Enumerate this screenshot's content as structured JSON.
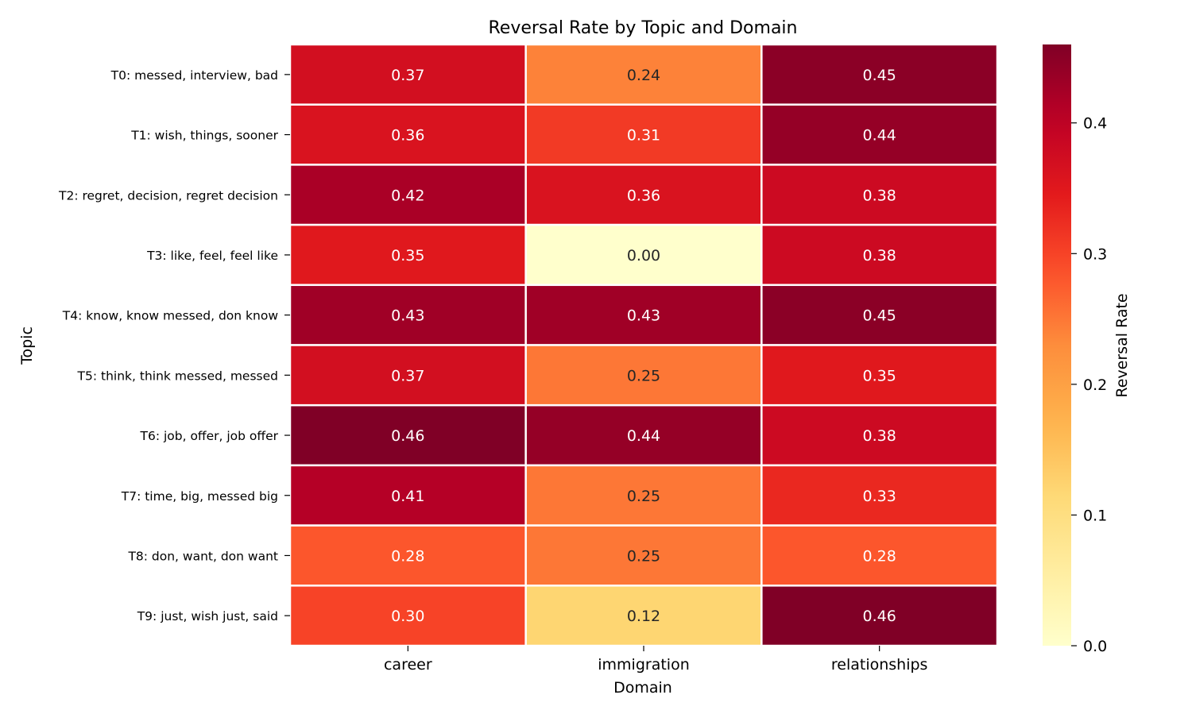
{
  "chart_data": {
    "type": "heatmap",
    "title": "Reversal Rate by Topic and Domain",
    "xlabel": "Domain",
    "ylabel": "Topic",
    "x_categories": [
      "career",
      "immigration",
      "relationships"
    ],
    "y_categories": [
      "T0: messed, interview, bad",
      "T1: wish, things, sooner",
      "T2: regret, decision, regret decision",
      "T3: like, feel, feel like",
      "T4: know, know messed, don know",
      "T5: think, think messed, messed",
      "T6: job, offer, job offer",
      "T7: time, big, messed big",
      "T8: don, want, don want",
      "T9: just, wish just, said"
    ],
    "values": [
      [
        0.37,
        0.24,
        0.45
      ],
      [
        0.36,
        0.31,
        0.44
      ],
      [
        0.42,
        0.36,
        0.38
      ],
      [
        0.35,
        0.0,
        0.38
      ],
      [
        0.43,
        0.43,
        0.45
      ],
      [
        0.37,
        0.25,
        0.35
      ],
      [
        0.46,
        0.44,
        0.38
      ],
      [
        0.41,
        0.25,
        0.33
      ],
      [
        0.28,
        0.25,
        0.28
      ],
      [
        0.3,
        0.12,
        0.46
      ]
    ],
    "value_labels": [
      [
        "0.37",
        "0.24",
        "0.45"
      ],
      [
        "0.36",
        "0.31",
        "0.44"
      ],
      [
        "0.42",
        "0.36",
        "0.38"
      ],
      [
        "0.35",
        "0.00",
        "0.38"
      ],
      [
        "0.43",
        "0.43",
        "0.45"
      ],
      [
        "0.37",
        "0.25",
        "0.35"
      ],
      [
        "0.46",
        "0.44",
        "0.38"
      ],
      [
        "0.41",
        "0.25",
        "0.33"
      ],
      [
        "0.28",
        "0.25",
        "0.28"
      ],
      [
        "0.30",
        "0.12",
        "0.46"
      ]
    ],
    "colorbar": {
      "label": "Reversal Rate",
      "colormap": "YlOrRd",
      "vmin": 0.0,
      "vmax": 0.46,
      "ticks": [
        0.0,
        0.1,
        0.2,
        0.3,
        0.4
      ],
      "tick_labels": [
        "0.0",
        "0.1",
        "0.2",
        "0.3",
        "0.4"
      ]
    },
    "cell_border_color": "#ffffff",
    "grid": false
  }
}
